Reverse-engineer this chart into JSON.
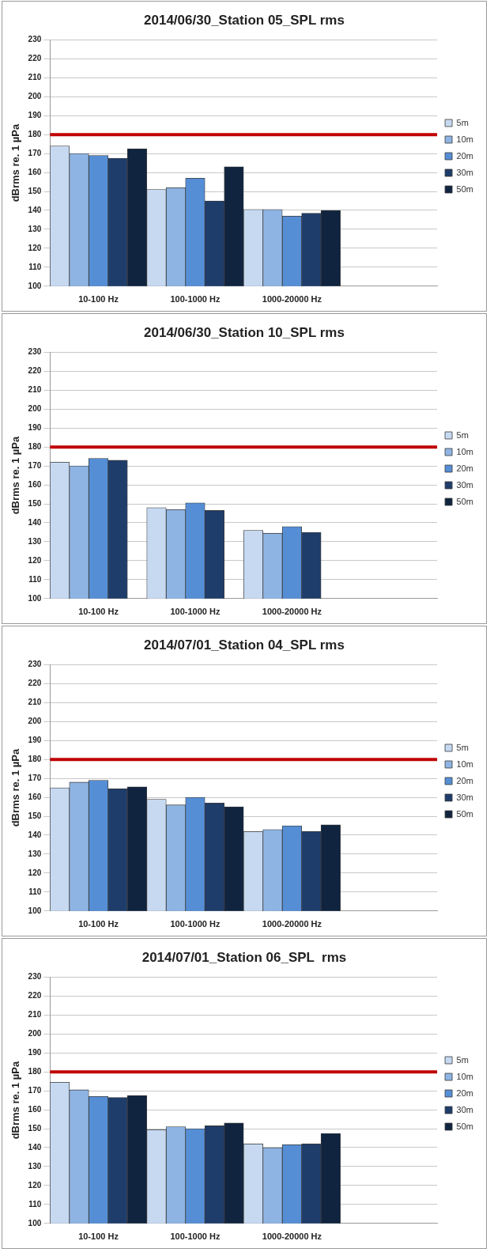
{
  "chart_data": [
    {
      "type": "bar",
      "title": "2014/06/30_Station 05_SPL rms",
      "ylabel": "dBrms re. 1 µPa",
      "categories": [
        "10-100 Hz",
        "100-1000 Hz",
        "1000-20000 Hz",
        null
      ],
      "ylim": [
        100,
        230
      ],
      "yticks": [
        100,
        110,
        120,
        130,
        140,
        150,
        160,
        170,
        180,
        190,
        200,
        210,
        220,
        230
      ],
      "grid": "y",
      "legend": "right",
      "ref_lines": [
        {
          "axis": "y",
          "value": 180,
          "color": "#c00000"
        }
      ],
      "series": [
        {
          "name": "5m",
          "color": "#c6d9f1",
          "values": [
            174,
            151,
            140.5,
            null
          ]
        },
        {
          "name": "10m",
          "color": "#8eb4e3",
          "values": [
            170,
            152,
            140.5,
            null
          ]
        },
        {
          "name": "20m",
          "color": "#558ed5",
          "values": [
            169,
            157,
            137,
            null
          ]
        },
        {
          "name": "30m",
          "color": "#1f3d6b",
          "values": [
            167.5,
            145,
            138.5,
            null
          ]
        },
        {
          "name": "50m",
          "color": "#10243f",
          "values": [
            172.5,
            163,
            140,
            null
          ]
        }
      ]
    },
    {
      "type": "bar",
      "title": "2014/06/30_Station 10_SPL rms",
      "ylabel": "dBrms re. 1 µPa",
      "categories": [
        "10-100 Hz",
        "100-1000 Hz",
        "1000-20000 Hz",
        null
      ],
      "ylim": [
        100,
        230
      ],
      "yticks": [
        100,
        110,
        120,
        130,
        140,
        150,
        160,
        170,
        180,
        190,
        200,
        210,
        220,
        230
      ],
      "grid": "y",
      "legend": "right",
      "ref_lines": [
        {
          "axis": "y",
          "value": 180,
          "color": "#c00000"
        }
      ],
      "series": [
        {
          "name": "5m",
          "color": "#c6d9f1",
          "values": [
            172,
            148,
            136,
            null
          ]
        },
        {
          "name": "10m",
          "color": "#8eb4e3",
          "values": [
            170,
            147,
            134.5,
            null
          ]
        },
        {
          "name": "20m",
          "color": "#558ed5",
          "values": [
            174,
            150.5,
            138,
            null
          ]
        },
        {
          "name": "30m",
          "color": "#1f3d6b",
          "values": [
            173,
            146.5,
            135,
            null
          ]
        },
        {
          "name": "50m",
          "color": "#10243f",
          "values": [
            null,
            null,
            null,
            null
          ]
        }
      ]
    },
    {
      "type": "bar",
      "title": "2014/07/01_Station 04_SPL rms",
      "ylabel": "dBrms re. 1 µPa",
      "categories": [
        "10-100 Hz",
        "100-1000 Hz",
        "1000-20000 Hz",
        null
      ],
      "ylim": [
        100,
        230
      ],
      "yticks": [
        100,
        110,
        120,
        130,
        140,
        150,
        160,
        170,
        180,
        190,
        200,
        210,
        220,
        230
      ],
      "grid": "y",
      "legend": "right",
      "ref_lines": [
        {
          "axis": "y",
          "value": 180,
          "color": "#c00000"
        }
      ],
      "series": [
        {
          "name": "5m",
          "color": "#c6d9f1",
          "values": [
            165,
            159,
            142,
            null
          ]
        },
        {
          "name": "10m",
          "color": "#8eb4e3",
          "values": [
            168,
            156,
            143,
            null
          ]
        },
        {
          "name": "20m",
          "color": "#558ed5",
          "values": [
            169,
            160,
            145,
            null
          ]
        },
        {
          "name": "30m",
          "color": "#1f3d6b",
          "values": [
            164.5,
            157,
            142,
            null
          ]
        },
        {
          "name": "50m",
          "color": "#10243f",
          "values": [
            165.5,
            155,
            145.5,
            null
          ]
        }
      ]
    },
    {
      "type": "bar",
      "title": "2014/07/01_Station 06_SPL  rms",
      "ylabel": "dBrms re. 1 µPa",
      "categories": [
        "10-100 Hz",
        "100-1000 Hz",
        "1000-20000 Hz",
        null
      ],
      "ylim": [
        100,
        230
      ],
      "yticks": [
        100,
        110,
        120,
        130,
        140,
        150,
        160,
        170,
        180,
        190,
        200,
        210,
        220,
        230
      ],
      "grid": "y",
      "legend": "right",
      "ref_lines": [
        {
          "axis": "y",
          "value": 180,
          "color": "#c00000"
        }
      ],
      "series": [
        {
          "name": "5m",
          "color": "#c6d9f1",
          "values": [
            174.5,
            149.5,
            142,
            null
          ]
        },
        {
          "name": "10m",
          "color": "#8eb4e3",
          "values": [
            170.5,
            151,
            140,
            null
          ]
        },
        {
          "name": "20m",
          "color": "#558ed5",
          "values": [
            167,
            150,
            141.5,
            null
          ]
        },
        {
          "name": "30m",
          "color": "#1f3d6b",
          "values": [
            166.5,
            151.5,
            142,
            null
          ]
        },
        {
          "name": "50m",
          "color": "#10243f",
          "values": [
            167.5,
            153,
            147.5,
            null
          ]
        }
      ]
    }
  ]
}
